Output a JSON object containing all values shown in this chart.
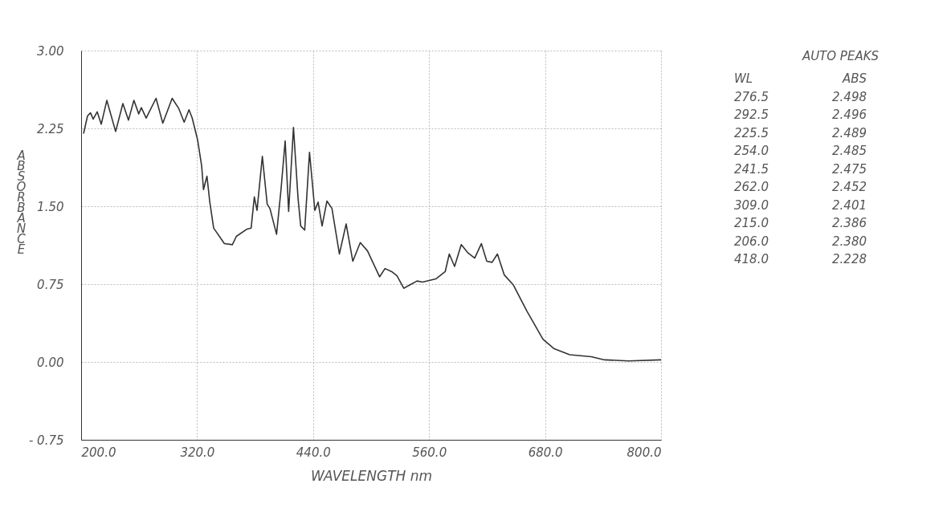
{
  "chart_data": {
    "type": "line",
    "xlabel": "WAVELENGTH  nm",
    "ylabel": "ABSORBANCE",
    "x": [
      202.5,
      206.6,
      209.7,
      212.5,
      216.6,
      220.8,
      226.6,
      235.7,
      243.2,
      249,
      254.6,
      259.6,
      262.3,
      267.3,
      277.5,
      284.5,
      294.2,
      301.1,
      306.6,
      311.6,
      314.9,
      320.5,
      324.7,
      326.6,
      330.2,
      333,
      337.1,
      348.2,
      356.5,
      360.6,
      371.7,
      375.9,
      379.2,
      382,
      387.5,
      392.5,
      395.3,
      402.2,
      406.8,
      411.1,
      414.7,
      419.7,
      424.4,
      427.2,
      431.3,
      436.3,
      441.8,
      445.2,
      449.3,
      454.3,
      459.5,
      467.2,
      474.2,
      481.1,
      488.8,
      496.3,
      501.8,
      508.8,
      514.4,
      521.3,
      526.8,
      533.8,
      547.6,
      553.2,
      567,
      576.7,
      580.9,
      586.4,
      593.3,
      600.3,
      607.2,
      614.1,
      619.7,
      625.2,
      630.7,
      637.7,
      647.3,
      661.2,
      677.8,
      688.9,
      705.5,
      727.9,
      741.6,
      766.5,
      800
    ],
    "series": [
      {
        "color": "#333333",
        "values": [
          2.2,
          2.37,
          2.4,
          2.34,
          2.41,
          2.29,
          2.52,
          2.22,
          2.49,
          2.33,
          2.52,
          2.39,
          2.45,
          2.35,
          2.54,
          2.3,
          2.54,
          2.44,
          2.31,
          2.43,
          2.35,
          2.14,
          1.89,
          1.66,
          1.79,
          1.55,
          1.29,
          1.14,
          1.13,
          1.21,
          1.28,
          1.29,
          1.59,
          1.46,
          1.98,
          1.52,
          1.48,
          1.23,
          1.66,
          2.13,
          1.45,
          2.26,
          1.58,
          1.31,
          1.27,
          2.02,
          1.46,
          1.54,
          1.31,
          1.55,
          1.48,
          1.04,
          1.33,
          0.97,
          1.15,
          1.07,
          0.96,
          0.82,
          0.9,
          0.87,
          0.83,
          0.71,
          0.78,
          0.77,
          0.8,
          0.87,
          1.04,
          0.92,
          1.13,
          1.05,
          1.0,
          1.14,
          0.97,
          0.96,
          1.04,
          0.84,
          0.74,
          0.49,
          0.22,
          0.13,
          0.07,
          0.05,
          0.02,
          0.01,
          0.02
        ]
      }
    ],
    "xlim": [
      200,
      800
    ],
    "ylim": [
      -0.75,
      3.0
    ],
    "xticks": [
      {
        "value": 200,
        "label": "200.0"
      },
      {
        "value": 320,
        "label": "320.0"
      },
      {
        "value": 440,
        "label": "440.0"
      },
      {
        "value": 560,
        "label": "560.0"
      },
      {
        "value": 680,
        "label": "680.0"
      },
      {
        "value": 800,
        "label": "800.0"
      }
    ],
    "yticks": [
      {
        "value": -0.75,
        "label": "- 0.75"
      },
      {
        "value": 0,
        "label": "0.00"
      },
      {
        "value": 0.75,
        "label": "0.75"
      },
      {
        "value": 1.5,
        "label": "1.50"
      },
      {
        "value": 2.25,
        "label": "2.25"
      },
      {
        "value": 3.0,
        "label": "3.00"
      }
    ],
    "grid": true,
    "legend": false,
    "marker": "none",
    "line_style": "solid",
    "annotations": [
      "AUTO PEAKS",
      "WL",
      "ABS",
      "276.5",
      "2.498",
      "292.5",
      "2.496",
      "225.5",
      "2.489",
      "254.0",
      "2.485",
      "241.5",
      "2.475",
      "262.0",
      "2.452",
      "309.0",
      "2.401",
      "215.0",
      "2.386",
      "206.0",
      "2.380",
      "418.0",
      "2.228"
    ]
  }
}
